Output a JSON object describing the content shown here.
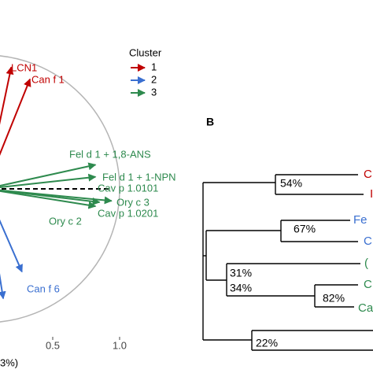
{
  "chart_data": [
    {
      "type": "biplot",
      "xlabel": "3%)",
      "xlim": [
        -0.1,
        1.1
      ],
      "ylim": [
        -1.4,
        1.4
      ],
      "xticks": [
        0.5,
        {
          "value": 1,
          "label": "1.0"
        }
      ],
      "legend_title": "Cluster",
      "series": [
        {
          "name": "1",
          "color": "#c00000",
          "labels": [
            "LCN1",
            "Can f 1"
          ],
          "x": [
            0.19,
            0.33
          ],
          "values": [
            0.91,
            0.82
          ]
        },
        {
          "name": "2",
          "color": "#3a6fd0",
          "labels": [
            "Can f 6",
            null
          ],
          "x": [
            0.27,
            0.13
          ],
          "values": [
            -0.62,
            -0.82
          ]
        },
        {
          "name": "3",
          "color": "#2e8a4e",
          "labels": [
            "Fel d 1 + 1,8-ANS",
            "Fel d 1 + 1-NPN",
            "Cav p 1.0101",
            "Ory c 3",
            "Cav p 1.0201",
            "Ory c  2"
          ],
          "x": [
            0.82,
            0.82,
            0.93,
            0.94,
            0.82,
            0.85
          ],
          "values": [
            0.18,
            0.09,
            0,
            -0.09,
            -0.13,
            -0.1
          ]
        }
      ]
    },
    {
      "type": "dendrogram",
      "panel_label": "B",
      "leaves": [
        {
          "label": "C",
          "color": "#c00000"
        },
        {
          "label": "I",
          "color": "#c00000"
        },
        {
          "label": "Fe",
          "color": "#3a6fd0"
        },
        {
          "label": "C",
          "color": "#3a6fd0"
        },
        {
          "label": "(",
          "color": "#2e8a4e"
        },
        {
          "label": "C",
          "color": "#2e8a4e"
        },
        {
          "label": "Ca",
          "color": "#2e8a4e"
        }
      ],
      "node_labels": [
        "54%",
        "67%",
        "31%",
        "34%",
        "82%",
        "22%"
      ]
    }
  ]
}
